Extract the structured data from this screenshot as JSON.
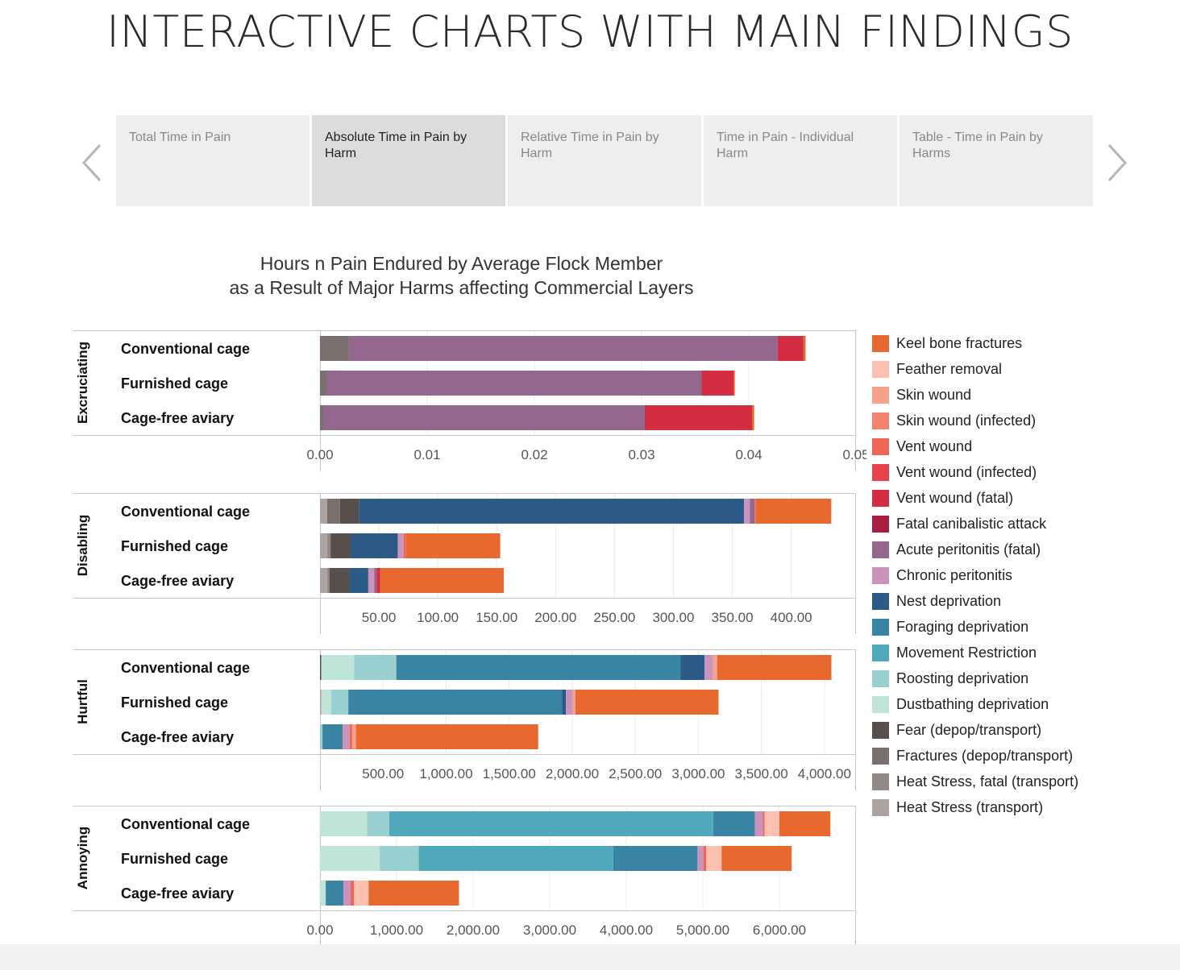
{
  "page": {
    "title": "INTERACTIVE CHARTS WITH MAIN FINDINGS",
    "prev_icon": "chevron-left-icon",
    "next_icon": "chevron-right-icon"
  },
  "tabs": [
    {
      "label": "Total Time in Pain",
      "active": false
    },
    {
      "label": "Absolute Time in Pain by Harm",
      "active": true
    },
    {
      "label": "Relative Time in Pain by Harm",
      "active": false
    },
    {
      "label": "Time in Pain - Individual Harm",
      "active": false
    },
    {
      "label": "Table - Time in Pain by Harms",
      "active": false
    }
  ],
  "chart_data": {
    "type": "bar",
    "orientation": "horizontal",
    "stacked": true,
    "title_lines": [
      "Hours n Pain Endured by Average Flock Member",
      "as a Result of Major Harms affecting Commercial Layers"
    ],
    "categories": [
      "Conventional cage",
      "Furnished cage",
      "Cage-free aviary"
    ],
    "legend_position": "right",
    "grid": true,
    "harms": [
      {
        "name": "Heat Stress (transport)",
        "color": "#ada3a0"
      },
      {
        "name": "Heat Stress, fatal (transport)",
        "color": "#938a87"
      },
      {
        "name": "Fractures (depop/transport)",
        "color": "#79706e"
      },
      {
        "name": "Fear (depop/transport)",
        "color": "#574f4c"
      },
      {
        "name": "Dustbathing deprivation",
        "color": "#bfe5d9"
      },
      {
        "name": "Roosting deprivation",
        "color": "#99cfcf"
      },
      {
        "name": "Movement Restriction",
        "color": "#4fa9bb"
      },
      {
        "name": "Foraging deprivation",
        "color": "#3984a3"
      },
      {
        "name": "Nest deprivation",
        "color": "#2c5985"
      },
      {
        "name": "Chronic peritonitis",
        "color": "#c993bb"
      },
      {
        "name": "Acute peritonitis (fatal)",
        "color": "#94678e"
      },
      {
        "name": "Fatal canibalistic attack",
        "color": "#a71f3f"
      },
      {
        "name": "Vent wound (fatal)",
        "color": "#d42d41"
      },
      {
        "name": "Vent wound (infected)",
        "color": "#e6434c"
      },
      {
        "name": "Vent wound",
        "color": "#ef6657"
      },
      {
        "name": "Skin wound (infected)",
        "color": "#f38370"
      },
      {
        "name": "Skin wound",
        "color": "#f7a08c"
      },
      {
        "name": "Feather removal",
        "color": "#fcc0b0"
      },
      {
        "name": "Keel bone fractures",
        "color": "#e8692f"
      }
    ],
    "panels": [
      {
        "label": "Excruciating",
        "ticks": [
          0,
          0.01,
          0.02,
          0.03,
          0.04,
          0.05
        ],
        "tick_labels": [
          "0.00",
          "0.01",
          "0.02",
          "0.03",
          "0.04",
          "0.05"
        ],
        "xlim": [
          0,
          0.05
        ],
        "bars": [
          [
            [
              "Fractures (depop/transport)",
              0.0027
            ],
            [
              "Acute peritonitis (fatal)",
              0.04
            ],
            [
              "Vent wound (fatal)",
              0.0024
            ],
            [
              "Keel bone fractures",
              0.0002
            ]
          ],
          [
            [
              "Fractures (depop/transport)",
              0.0006
            ],
            [
              "Acute peritonitis (fatal)",
              0.035
            ],
            [
              "Vent wound (fatal)",
              0.003
            ],
            [
              "Keel bone fractures",
              0.0001
            ]
          ],
          [
            [
              "Fractures (depop/transport)",
              0.0003
            ],
            [
              "Acute peritonitis (fatal)",
              0.03
            ],
            [
              "Vent wound (fatal)",
              0.01
            ],
            [
              "Keel bone fractures",
              0.0002
            ]
          ]
        ]
      },
      {
        "label": "Disabling",
        "ticks": [
          50,
          100,
          150,
          200,
          250,
          300,
          350,
          400
        ],
        "tick_labels": [
          "50.00",
          "100.00",
          "150.00",
          "200.00",
          "250.00",
          "300.00",
          "350.00",
          "400.00"
        ],
        "xlim": [
          0,
          455
        ],
        "bars": [
          [
            [
              "Heat Stress (transport)",
              6
            ],
            [
              "Fractures (depop/transport)",
              11
            ],
            [
              "Fear (depop/transport)",
              16
            ],
            [
              "Nest deprivation",
              327
            ],
            [
              "Chronic peritonitis",
              5
            ],
            [
              "Acute peritonitis (fatal)",
              4
            ],
            [
              "Vent wound",
              1
            ],
            [
              "Keel bone fractures",
              64
            ]
          ],
          [
            [
              "Heat Stress (transport)",
              6
            ],
            [
              "Heat Stress, fatal (transport)",
              3
            ],
            [
              "Fear (depop/transport)",
              17
            ],
            [
              "Nest deprivation",
              40
            ],
            [
              "Chronic peritonitis",
              5
            ],
            [
              "Vent wound",
              2
            ],
            [
              "Keel bone fractures",
              80
            ]
          ],
          [
            [
              "Heat Stress (transport)",
              6
            ],
            [
              "Heat Stress, fatal (transport)",
              2
            ],
            [
              "Fear (depop/transport)",
              17
            ],
            [
              "Nest deprivation",
              16
            ],
            [
              "Chronic peritonitis",
              5
            ],
            [
              "Acute peritonitis (fatal)",
              2
            ],
            [
              "Vent wound (fatal)",
              3
            ],
            [
              "Keel bone fractures",
              105
            ]
          ]
        ]
      },
      {
        "label": "Hurtful",
        "ticks": [
          500,
          1000,
          1500,
          2000,
          2500,
          3000,
          3500,
          4000
        ],
        "tick_labels": [
          "500.00",
          "1,000.00",
          "1,500.00",
          "2,000.00",
          "2,500.00",
          "3,000.00",
          "3,500.00",
          "4,000.00"
        ],
        "xlim": [
          0,
          4250
        ],
        "bars": [
          [
            [
              "Fear (depop/transport)",
              10
            ],
            [
              "Dustbathing deprivation",
              260
            ],
            [
              "Roosting deprivation",
              335
            ],
            [
              "Foraging deprivation",
              2255
            ],
            [
              "Nest deprivation",
              190
            ],
            [
              "Chronic peritonitis",
              65
            ],
            [
              "Skin wound",
              35
            ],
            [
              "Keel bone fractures",
              905
            ]
          ],
          [
            [
              "Heat Stress (transport)",
              10
            ],
            [
              "Dustbathing deprivation",
              80
            ],
            [
              "Roosting deprivation",
              135
            ],
            [
              "Foraging deprivation",
              1695
            ],
            [
              "Nest deprivation",
              30
            ],
            [
              "Chronic peritonitis",
              55
            ],
            [
              "Skin wound",
              20
            ],
            [
              "Keel bone fractures",
              1135
            ]
          ],
          [
            [
              "Roosting deprivation",
              20
            ],
            [
              "Foraging deprivation",
              160
            ],
            [
              "Chronic peritonitis",
              55
            ],
            [
              "Vent wound",
              20
            ],
            [
              "Skin wound",
              30
            ],
            [
              "Keel bone fractures",
              1445
            ]
          ]
        ]
      },
      {
        "label": "Annoying",
        "ticks": [
          0,
          1000,
          2000,
          3000,
          4000,
          5000,
          6000
        ],
        "tick_labels": [
          "0.00",
          "1,000.00",
          "2,000.00",
          "3,000.00",
          "4,000.00",
          "5,000.00",
          "6,000.00"
        ],
        "xlim": [
          0,
          7000
        ],
        "bars": [
          [
            [
              "Dustbathing deprivation",
              615
            ],
            [
              "Roosting deprivation",
              290
            ],
            [
              "Movement Restriction",
              4230
            ],
            [
              "Foraging deprivation",
              545
            ],
            [
              "Chronic peritonitis",
              105
            ],
            [
              "Vent wound",
              20
            ],
            [
              "Feather removal",
              195
            ],
            [
              "Keel bone fractures",
              665
            ]
          ],
          [
            [
              "Dustbathing deprivation",
              780
            ],
            [
              "Roosting deprivation",
              510
            ],
            [
              "Movement Restriction",
              2540
            ],
            [
              "Foraging deprivation",
              1100
            ],
            [
              "Chronic peritonitis",
              80
            ],
            [
              "Vent wound",
              35
            ],
            [
              "Feather removal",
              200
            ],
            [
              "Keel bone fractures",
              915
            ]
          ],
          [
            [
              "Dustbathing deprivation",
              75
            ],
            [
              "Foraging deprivation",
              230
            ],
            [
              "Chronic peritonitis",
              95
            ],
            [
              "Vent wound",
              45
            ],
            [
              "Feather removal",
              190
            ],
            [
              "Keel bone fractures",
              1180
            ]
          ]
        ]
      }
    ]
  }
}
